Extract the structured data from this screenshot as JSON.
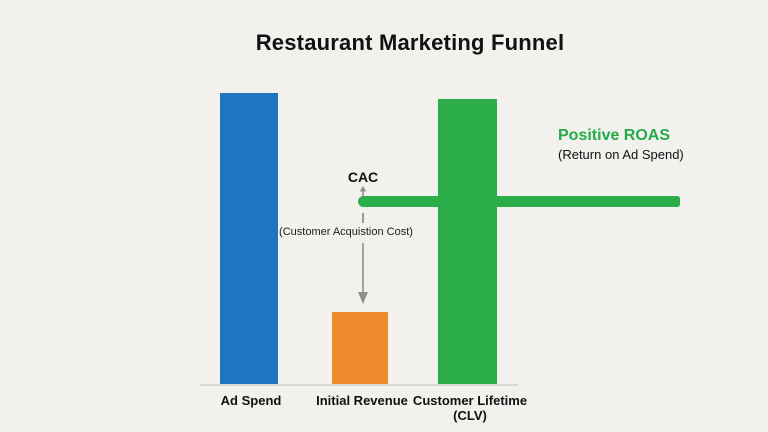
{
  "title": "Restaurant Marketing Funnel",
  "cac": {
    "label": "CAC",
    "sublabel": "(Customer Acquistion Cost)"
  },
  "roas": {
    "label": "Positive ROAS",
    "sublabel": "(Return on Ad Spend)"
  },
  "x_labels": {
    "ad_spend": "Ad Spend",
    "initial_revenue": "Initial Revenue",
    "clv_line1": "Customer Lifetime",
    "clv_line2": "(CLV)"
  },
  "colors": {
    "background": "#f2f1ee",
    "ad_spend_bar": "#1e76c3",
    "initial_revenue_bar": "#ee8c2d",
    "clv_bar": "#2bad4a",
    "roas_text": "#23ab47",
    "cac_line": "#2bad4a",
    "arrow_gray": "#8f8f8f",
    "baseline_gray": "#d8d8d3",
    "text_dark": "#121212"
  },
  "chart_data": {
    "type": "bar",
    "title": "Restaurant Marketing Funnel",
    "categories": [
      "Ad Spend",
      "Initial Revenue",
      "Customer Lifetime (CLV)"
    ],
    "values": [
      100,
      25,
      98
    ],
    "bar_colors": [
      "#1e76c3",
      "#ee8c2d",
      "#2bad4a"
    ],
    "ylim": [
      0,
      100
    ],
    "grid": false,
    "y_axis_visible": false,
    "legend": "none",
    "annotations": [
      {
        "type": "hline",
        "name": "cac-line",
        "label": "CAC",
        "sublabel": "(Customer Acquistion Cost)",
        "y": 63,
        "color": "#2bad4a",
        "extends": "from just left of Initial Revenue bar rightward past CLV bar"
      },
      {
        "type": "arrow",
        "name": "cac-to-revenue-arrow",
        "direction": "down",
        "from_y": 48,
        "to_y": 28,
        "points_at": "Initial Revenue"
      },
      {
        "type": "text",
        "name": "roas-callout",
        "label": "Positive ROAS",
        "sublabel": "(Return on Ad Spend)",
        "color": "#23ab47",
        "position": "right of CLV bar, above CAC line"
      }
    ]
  }
}
